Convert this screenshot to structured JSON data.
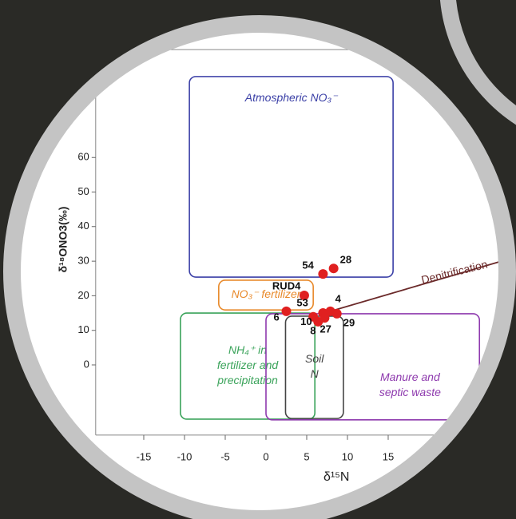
{
  "chart_data": {
    "type": "scatter",
    "x_label": "δ¹⁵N",
    "y_label": "δ¹⁸ONO3(‰)",
    "xlim": [
      -20.9,
      30
    ],
    "ylim": [
      -20.3,
      91.2
    ],
    "xticks": [
      -15,
      -10,
      -5,
      0,
      5,
      10,
      15
    ],
    "yticks": [
      0,
      10,
      20,
      30,
      40,
      50,
      60
    ],
    "regions": [
      {
        "label": [
          "Atmospheric NO₃⁻"
        ],
        "color": "#3a3fa6",
        "x": [
          -9.4,
          15.6
        ],
        "y": [
          25.4,
          83.4
        ]
      },
      {
        "label": [
          "NH₄⁺ in",
          "fertilizer and",
          "precipitation"
        ],
        "color": "#3aa35a",
        "x": [
          -10.5,
          6.0
        ],
        "y": [
          -15.7,
          15.0
        ]
      },
      {
        "label": [
          "Manure and",
          "septic waste"
        ],
        "color": "#8e3aae",
        "x": [
          0,
          26.2
        ],
        "y": [
          -15.9,
          14.8
        ]
      },
      {
        "label": [
          "Soil",
          "N"
        ],
        "color": "#444444",
        "x": [
          2.4,
          9.5
        ],
        "y": [
          -15.5,
          14.1
        ]
      },
      {
        "label": [
          "NO₃⁻ fertilizer"
        ],
        "color": "#e8892a",
        "x": [
          -5.8,
          5.8
        ],
        "y": [
          15.9,
          24.5
        ]
      }
    ],
    "arrow": {
      "label": "Denitrification",
      "color": "#6b2a2a",
      "x": [
        7.9,
        28.6
      ],
      "y": [
        15.5,
        29.8
      ]
    },
    "series": [
      {
        "color": "#e02020",
        "labels": [
          "54",
          "28",
          "RUD4",
          "53",
          "4",
          "6",
          "10",
          "8",
          "27",
          "29"
        ],
        "x": [
          7.0,
          8.3,
          4.7,
          7.0,
          7.9,
          2.5,
          5.8,
          6.4,
          7.2,
          8.7
        ],
        "values": [
          26.3,
          27.9,
          20.1,
          15.0,
          15.5,
          15.5,
          13.9,
          12.5,
          13.6,
          14.8
        ]
      }
    ]
  }
}
